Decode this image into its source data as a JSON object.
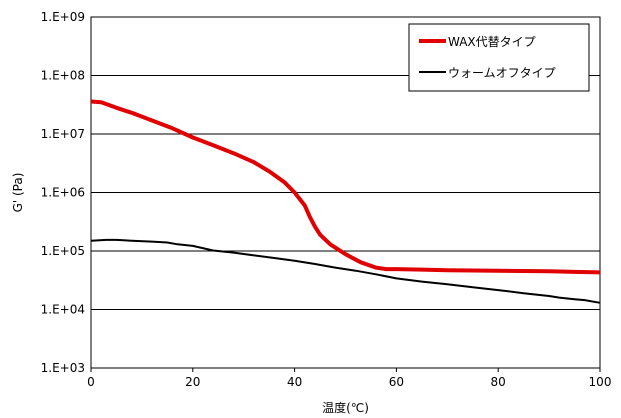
{
  "chart_data": {
    "type": "line",
    "xlabel": "温度(℃)",
    "ylabel": "G' (Pa)",
    "xlim": [
      0,
      100
    ],
    "ylim": [
      1000,
      1000000000
    ],
    "y_scale": "log",
    "grid": "horizontal",
    "legend_position": "top-right",
    "x_ticks": [
      "0",
      "20",
      "40",
      "60",
      "80",
      "100"
    ],
    "y_ticks": [
      "1.E+03",
      "1.E+04",
      "1.E+05",
      "1.E+06",
      "1.E+07",
      "1.E+08",
      "1.E+09"
    ],
    "series": [
      {
        "name": "WAX代替タイプ",
        "color": "#e00000",
        "x": [
          0,
          2,
          5,
          8,
          12,
          16,
          20,
          24,
          28,
          32,
          35,
          38,
          40,
          42,
          43,
          44,
          45,
          47,
          50,
          53,
          56,
          58,
          60,
          65,
          70,
          80,
          90,
          95,
          100
        ],
        "y": [
          36000000,
          35000000,
          28000000,
          23000000,
          17000000,
          12500000,
          8700000,
          6400000,
          4700000,
          3300000,
          2300000,
          1500000,
          1000000,
          600000,
          380000,
          260000,
          190000,
          130000,
          88000,
          64000,
          52000,
          49000,
          49000,
          48000,
          47000,
          46000,
          45000,
          44000,
          43000
        ]
      },
      {
        "name": "ウォームオフタイプ",
        "color": "#000000",
        "x": [
          0,
          3,
          5,
          8,
          12,
          15,
          17,
          20,
          24,
          28,
          32,
          36,
          40,
          44,
          48,
          52,
          56,
          60,
          65,
          70,
          75,
          80,
          85,
          90,
          92,
          95,
          97,
          100
        ],
        "y": [
          150000,
          155000,
          155000,
          150000,
          145000,
          140000,
          130000,
          122000,
          102000,
          94000,
          84000,
          76000,
          68000,
          60000,
          52000,
          46000,
          40000,
          34000,
          30000,
          27000,
          24000,
          21500,
          19000,
          17000,
          16000,
          15000,
          14500,
          13000
        ]
      }
    ]
  }
}
